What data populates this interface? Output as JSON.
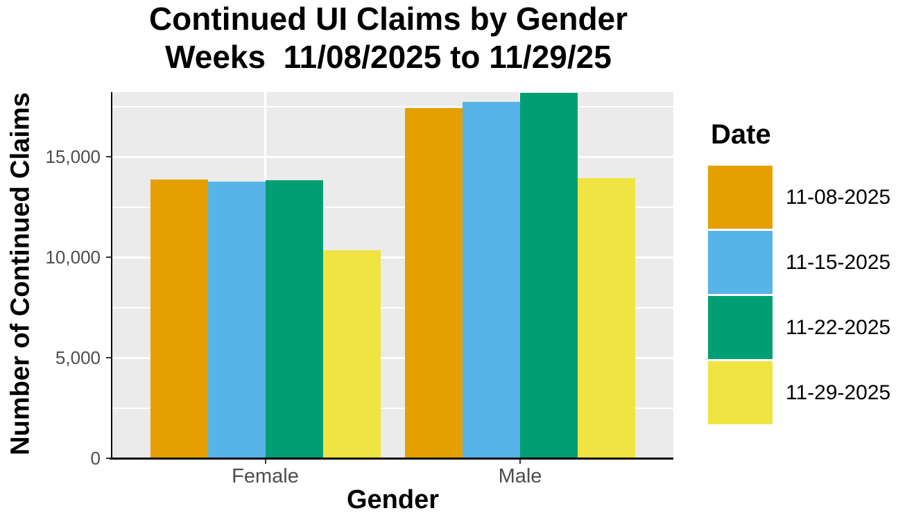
{
  "chart_data": {
    "type": "bar",
    "title_line1": "Continued UI Claims by Gender",
    "title_line2": "Weeks  11/08/2025 to 11/29/25",
    "xlabel": "Gender",
    "ylabel": "Number of Continued Claims",
    "categories": [
      "Female",
      "Male"
    ],
    "series": [
      {
        "name": "11-08-2025",
        "color": "#E69F00",
        "values": [
          13860,
          17420
        ]
      },
      {
        "name": "11-15-2025",
        "color": "#56B4E9",
        "values": [
          13760,
          17710
        ]
      },
      {
        "name": "11-22-2025",
        "color": "#009E73",
        "values": [
          13830,
          18170
        ]
      },
      {
        "name": "11-29-2025",
        "color": "#F0E442",
        "values": [
          10350,
          13930
        ]
      }
    ],
    "ylim": [
      0,
      18210
    ],
    "y_ticks": [
      {
        "value": 0,
        "label": "0"
      },
      {
        "value": 5000,
        "label": "5,000"
      },
      {
        "value": 10000,
        "label": "10,000"
      },
      {
        "value": 15000,
        "label": "15,000"
      }
    ],
    "y_minor_ticks": [
      2500,
      7500,
      12500,
      17500
    ],
    "grid": "on",
    "legend": {
      "title": "Date",
      "position": "right"
    },
    "colors": {
      "panel_bg": "#EBEBEB",
      "gridline": "#FFFFFF",
      "axis_text": "#4D4D4D",
      "axis_line": "#000000",
      "tick_mark": "#333333",
      "title_text": "#000000",
      "background": "#FFFFFF"
    }
  }
}
